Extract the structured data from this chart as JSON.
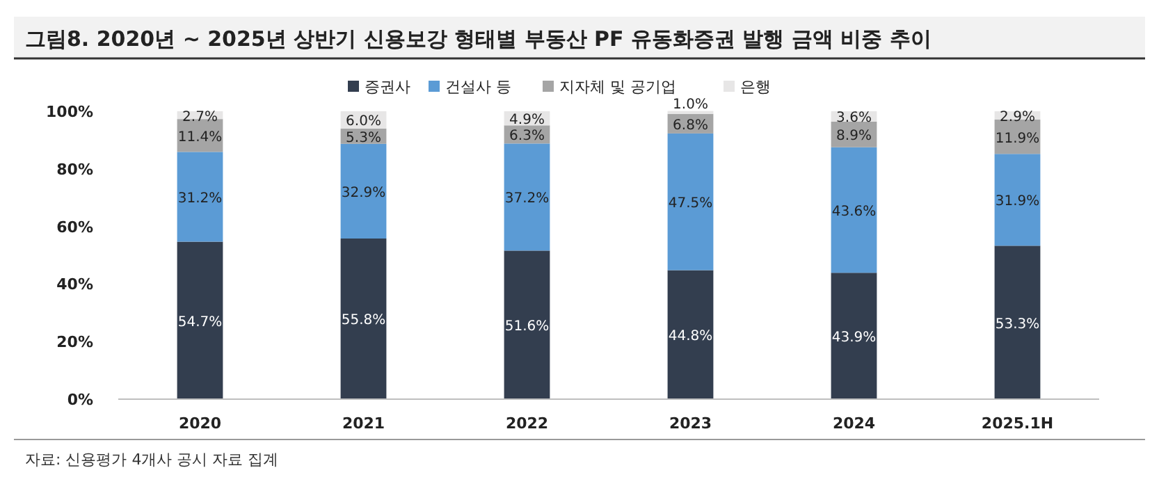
{
  "chart_data": {
    "type": "bar",
    "title": "그림8. 2020년 ~ 2025년 상반기 신용보강 형태별 부동산 PF 유동화증권 발행 금액 비중 추이",
    "categories": [
      "2020",
      "2021",
      "2022",
      "2023",
      "2024",
      "2025.1H"
    ],
    "stacked": true,
    "series": [
      {
        "name": "증권사",
        "color": "#333e4f",
        "values": [
          54.7,
          55.8,
          51.6,
          44.8,
          43.9,
          53.3
        ],
        "value_labels": [
          "54.7%",
          "55.8%",
          "51.6%",
          "44.8%",
          "43.9%",
          "53.3%"
        ]
      },
      {
        "name": "건설사 등",
        "color": "#5b9bd5",
        "values": [
          31.2,
          32.9,
          37.2,
          47.5,
          43.6,
          31.9
        ],
        "value_labels": [
          "31.2%",
          "32.9%",
          "37.2%",
          "47.5%",
          "43.6%",
          "31.9%"
        ]
      },
      {
        "name": "지자체 및 공기업",
        "color": "#a5a5a5",
        "values": [
          11.4,
          5.3,
          6.3,
          6.8,
          8.9,
          11.9
        ],
        "value_labels": [
          "11.4%",
          "5.3%",
          "6.3%",
          "6.8%",
          "8.9%",
          "11.9%"
        ]
      },
      {
        "name": "은행",
        "color": "#e7e6e6",
        "values": [
          2.7,
          6.0,
          4.9,
          1.0,
          3.6,
          2.9
        ],
        "value_labels": [
          "2.7%",
          "6.0%",
          "4.9%",
          "1.0%",
          "3.6%",
          "2.9%"
        ]
      }
    ],
    "legend": "top",
    "ylim": [
      0,
      100
    ],
    "yticks": [
      {
        "value": 0,
        "label": "0%"
      },
      {
        "value": 20,
        "label": "20%"
      },
      {
        "value": 40,
        "label": "40%"
      },
      {
        "value": 60,
        "label": "60%"
      },
      {
        "value": 80,
        "label": "80%"
      },
      {
        "value": 100,
        "label": "100%"
      }
    ],
    "annotations": [
      "자료: 신용평가 4개사 공시 자료 집계"
    ]
  }
}
